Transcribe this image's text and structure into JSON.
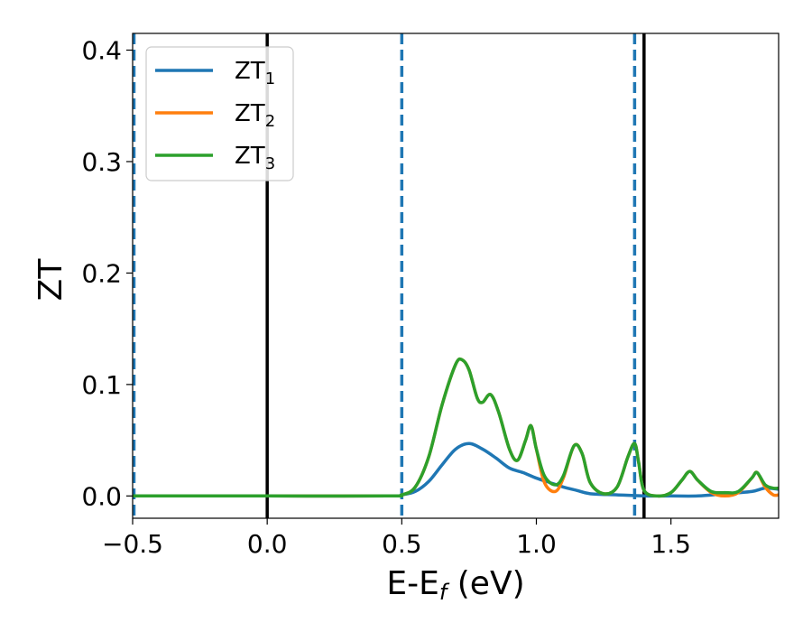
{
  "chart_data": {
    "type": "line",
    "xlabel_main": "E-E",
    "xlabel_sub": "f",
    "xlabel_unit": " (eV)",
    "ylabel": "ZT",
    "xlim": [
      -0.5,
      1.9
    ],
    "ylim": [
      -0.02,
      0.415
    ],
    "x_ticks": [
      -0.5,
      0.0,
      0.5,
      1.0,
      1.5
    ],
    "x_tick_labels": [
      "−0.5",
      "0.0",
      "0.5",
      "1.0",
      "1.5"
    ],
    "y_ticks": [
      0.0,
      0.1,
      0.2,
      0.3,
      0.4
    ],
    "y_tick_labels": [
      "0.0",
      "0.1",
      "0.2",
      "0.3",
      "0.4"
    ],
    "grid": false,
    "legend_position": "top-left",
    "vlines": [
      {
        "x": -0.495,
        "style": "dashed",
        "color": "#1f77b4"
      },
      {
        "x": 0.0,
        "style": "solid",
        "color": "#000000"
      },
      {
        "x": 0.5,
        "style": "dashed",
        "color": "#1f77b4"
      },
      {
        "x": 1.365,
        "style": "dashed",
        "color": "#1f77b4"
      },
      {
        "x": 1.4,
        "style": "solid",
        "color": "#000000"
      }
    ],
    "series": [
      {
        "name_main": "ZT",
        "name_sub": "1",
        "color": "#1f77b4",
        "x": [
          -0.5,
          0.0,
          0.45,
          0.5,
          0.55,
          0.6,
          0.65,
          0.7,
          0.75,
          0.8,
          0.85,
          0.9,
          0.95,
          1.0,
          1.05,
          1.1,
          1.15,
          1.2,
          1.3,
          1.4,
          1.5,
          1.6,
          1.7,
          1.8,
          1.85,
          1.9
        ],
        "y": [
          0.0,
          0.0,
          0.0,
          0.001,
          0.004,
          0.013,
          0.028,
          0.042,
          0.047,
          0.042,
          0.034,
          0.025,
          0.021,
          0.016,
          0.012,
          0.008,
          0.005,
          0.002,
          0.001,
          0.0,
          0.0,
          0.0,
          0.002,
          0.004,
          0.007,
          0.006
        ]
      },
      {
        "name_main": "ZT",
        "name_sub": "2",
        "color": "#ff7f0e",
        "x": [
          -0.5,
          0.0,
          0.45,
          0.5,
          0.55,
          0.6,
          0.65,
          0.7,
          0.725,
          0.75,
          0.78,
          0.8,
          0.83,
          0.86,
          0.9,
          0.93,
          0.96,
          0.98,
          1.0,
          1.03,
          1.07,
          1.1,
          1.14,
          1.17,
          1.2,
          1.25,
          1.3,
          1.34,
          1.365,
          1.38,
          1.4,
          1.45,
          1.5,
          1.54,
          1.57,
          1.6,
          1.65,
          1.7,
          1.75,
          1.8,
          1.82,
          1.85,
          1.88,
          1.9
        ],
        "y": [
          0.0,
          0.0,
          0.0,
          0.001,
          0.008,
          0.035,
          0.082,
          0.118,
          0.122,
          0.113,
          0.088,
          0.084,
          0.091,
          0.075,
          0.042,
          0.032,
          0.05,
          0.063,
          0.042,
          0.012,
          0.004,
          0.016,
          0.045,
          0.038,
          0.012,
          0.002,
          0.008,
          0.035,
          0.047,
          0.03,
          0.005,
          0.0,
          0.003,
          0.014,
          0.022,
          0.014,
          0.003,
          0.0,
          0.003,
          0.016,
          0.021,
          0.008,
          0.001,
          0.001
        ]
      },
      {
        "name_main": "ZT",
        "name_sub": "3",
        "color": "#2ca02c",
        "x": [
          -0.5,
          0.0,
          0.45,
          0.5,
          0.55,
          0.6,
          0.65,
          0.7,
          0.725,
          0.75,
          0.78,
          0.8,
          0.83,
          0.86,
          0.9,
          0.93,
          0.96,
          0.98,
          1.0,
          1.03,
          1.07,
          1.1,
          1.14,
          1.17,
          1.2,
          1.25,
          1.3,
          1.34,
          1.365,
          1.38,
          1.4,
          1.45,
          1.5,
          1.54,
          1.57,
          1.6,
          1.65,
          1.7,
          1.75,
          1.8,
          1.82,
          1.85,
          1.88,
          1.9
        ],
        "y": [
          0.0,
          0.0,
          0.0,
          0.001,
          0.008,
          0.035,
          0.082,
          0.118,
          0.122,
          0.113,
          0.088,
          0.084,
          0.091,
          0.075,
          0.042,
          0.032,
          0.05,
          0.063,
          0.042,
          0.018,
          0.01,
          0.018,
          0.045,
          0.038,
          0.012,
          0.002,
          0.008,
          0.035,
          0.047,
          0.03,
          0.005,
          0.0,
          0.003,
          0.014,
          0.022,
          0.014,
          0.004,
          0.003,
          0.004,
          0.016,
          0.021,
          0.01,
          0.007,
          0.007
        ]
      }
    ]
  }
}
